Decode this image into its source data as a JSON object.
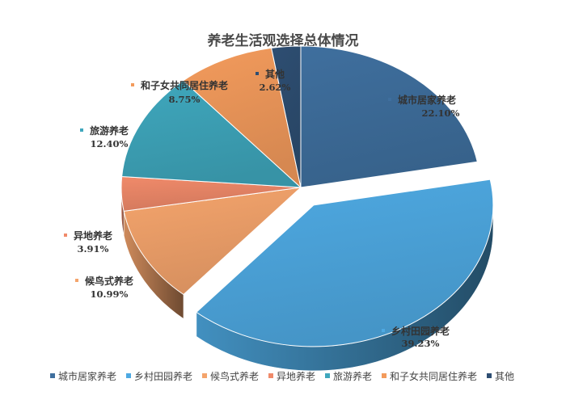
{
  "chart_data": {
    "type": "pie",
    "style": "3d-exploded",
    "title": "养老生活观选择总体情况",
    "legend_position": "bottom",
    "slices": [
      {
        "name": "城市居家养老",
        "value": 22.1,
        "label": "22.10%",
        "color": "#3f6f9e"
      },
      {
        "name": "乡村田园养老",
        "value": 39.23,
        "label": "39.23%",
        "color": "#4ea9e2"
      },
      {
        "name": "候鸟式养老",
        "value": 10.99,
        "label": "10.99%",
        "color": "#f4a46c"
      },
      {
        "name": "异地养老",
        "value": 3.91,
        "label": "3.91%",
        "color": "#f08a6a"
      },
      {
        "name": "旅游养老",
        "value": 12.4,
        "label": "12.40%",
        "color": "#3fa7bd"
      },
      {
        "name": "和子女共同居住养老",
        "value": 8.75,
        "label": "8.75%",
        "color": "#f39b5c"
      },
      {
        "name": "其他",
        "value": 2.62,
        "label": "2.62%",
        "color": "#2e4e72"
      }
    ]
  }
}
